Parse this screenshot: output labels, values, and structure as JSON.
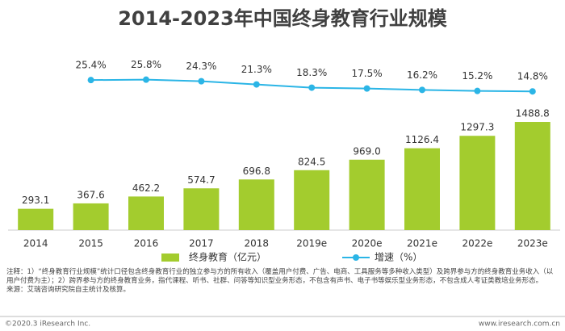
{
  "chart_data": {
    "type": "bar-line",
    "title": "2014-2023年中国终身教育行业规模",
    "categories": [
      "2014",
      "2015",
      "2016",
      "2017",
      "2018",
      "2019e",
      "2020e",
      "2021e",
      "2022e",
      "2023e"
    ],
    "series": [
      {
        "name": "终身教育（亿元）",
        "type": "bar",
        "color": "#a3cc2e",
        "values": [
          293.1,
          367.6,
          462.2,
          574.7,
          696.8,
          824.5,
          969.0,
          1126.4,
          1297.3,
          1488.8
        ],
        "value_labels": [
          "293.1",
          "367.6",
          "462.2",
          "574.7",
          "696.8",
          "824.5",
          "969.0",
          "1126.4",
          "1297.3",
          "1488.8"
        ]
      },
      {
        "name": "增速（%）",
        "type": "line",
        "color": "#2bb5e6",
        "axis": "y2",
        "values": [
          null,
          25.4,
          25.8,
          24.3,
          21.3,
          18.3,
          17.5,
          16.2,
          15.2,
          14.8
        ],
        "value_labels": [
          null,
          "25.4%",
          "25.8%",
          "24.3%",
          "21.3%",
          "18.3%",
          "17.5%",
          "16.2%",
          "15.2%",
          "14.8%"
        ]
      }
    ],
    "ylim": [
      0,
      2500
    ],
    "y2lim": [
      -115,
      55
    ],
    "legend": "bottom",
    "notes": "注释：1）“终身教育行业规模”统计口径包含终身教育行业的独立参与方的所有收入（覆盖用户付费、广告、电商、工具服务等多种收入类型）及跨界参与方的终身教育业务收入（以用户付费为主）；2）跨界参与方的终身教育业务，指代课程、听书、社群、问答等知识型业务形态，不包含有声书、电子书等娱乐型业务形态，不包含成人考证类教培业务形态。",
    "source": "来源：艾瑞咨询研究院自主统计及核算。",
    "copyright": "©2020.3 iResearch Inc.",
    "website": "www.iresearch.com.cn"
  }
}
